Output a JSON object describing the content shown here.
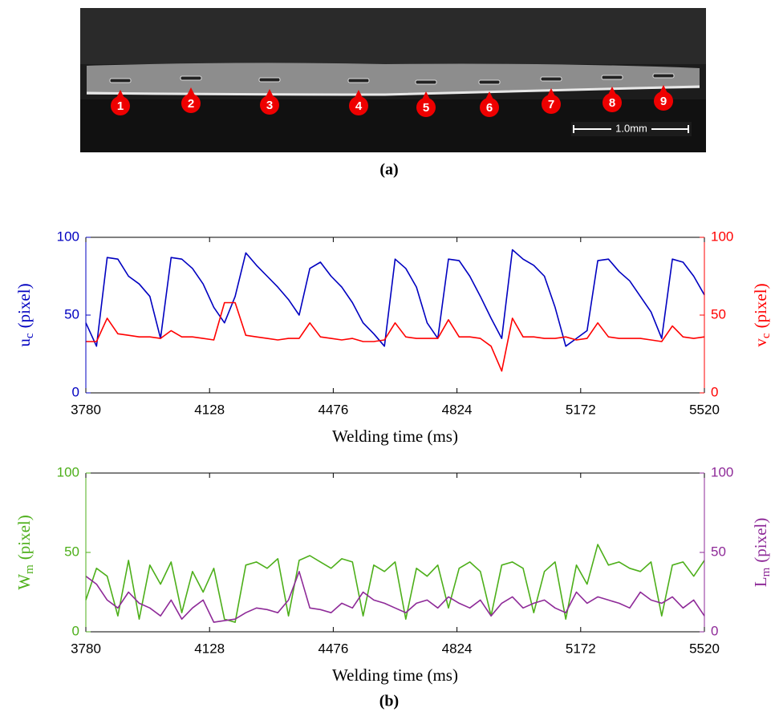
{
  "panel_a": {
    "markers": [
      "1",
      "2",
      "3",
      "4",
      "5",
      "6",
      "7",
      "8",
      "9"
    ],
    "scale_bar": "1.0mm",
    "caption": "(a)"
  },
  "chart_data": [
    {
      "type": "line",
      "x": [
        3780,
        3810,
        3840,
        3870,
        3900,
        3930,
        3960,
        3990,
        4020,
        4050,
        4080,
        4110,
        4140,
        4170,
        4200,
        4230,
        4260,
        4290,
        4320,
        4350,
        4380,
        4410,
        4440,
        4470,
        4500,
        4530,
        4560,
        4590,
        4620,
        4650,
        4680,
        4710,
        4740,
        4770,
        4800,
        4830,
        4860,
        4890,
        4920,
        4950,
        4980,
        5010,
        5040,
        5070,
        5100,
        5130,
        5160,
        5190,
        5220,
        5250,
        5280,
        5310,
        5340,
        5370,
        5400,
        5430,
        5460,
        5490,
        5520
      ],
      "xlim": [
        3780,
        5520
      ],
      "xticks": [
        3780,
        4128,
        4476,
        4824,
        5172,
        5520
      ],
      "ylim": [
        0,
        100
      ],
      "yticks": [
        0,
        50,
        100
      ],
      "y2lim": [
        0,
        100
      ],
      "y2ticks": [
        0,
        50,
        100
      ],
      "xlabel": "Welding time (ms)",
      "ylabel": {
        "main": "u",
        "sub": "c",
        "unit": "(pixel)"
      },
      "y2label": {
        "main": "v",
        "sub": "c",
        "unit": "(pixel)"
      },
      "grid": false,
      "series": [
        {
          "color": "#0000c0",
          "values": [
            45,
            30,
            87,
            86,
            75,
            70,
            62,
            35,
            87,
            86,
            80,
            70,
            55,
            45,
            62,
            90,
            82,
            75,
            68,
            60,
            50,
            80,
            84,
            75,
            68,
            58,
            45,
            38,
            30,
            86,
            80,
            68,
            45,
            35,
            86,
            85,
            75,
            62,
            48,
            35,
            92,
            86,
            82,
            75,
            55,
            30,
            35,
            40,
            85,
            86,
            78,
            72,
            62,
            52,
            35,
            86,
            84,
            75,
            63
          ]
        },
        {
          "color": "#ff0000",
          "axis": "y2",
          "values": [
            33,
            33,
            48,
            38,
            37,
            36,
            36,
            35,
            40,
            36,
            36,
            35,
            34,
            58,
            58,
            37,
            36,
            35,
            34,
            35,
            35,
            45,
            36,
            35,
            34,
            35,
            33,
            33,
            34,
            45,
            36,
            35,
            35,
            35,
            47,
            36,
            36,
            35,
            30,
            14,
            48,
            36,
            36,
            35,
            35,
            36,
            34,
            35,
            45,
            36,
            35,
            35,
            35,
            34,
            33,
            43,
            36,
            35,
            36
          ]
        }
      ]
    },
    {
      "type": "line",
      "x": [
        3780,
        3810,
        3840,
        3870,
        3900,
        3930,
        3960,
        3990,
        4020,
        4050,
        4080,
        4110,
        4140,
        4170,
        4200,
        4230,
        4260,
        4290,
        4320,
        4350,
        4380,
        4410,
        4440,
        4470,
        4500,
        4530,
        4560,
        4590,
        4620,
        4650,
        4680,
        4710,
        4740,
        4770,
        4800,
        4830,
        4860,
        4890,
        4920,
        4950,
        4980,
        5010,
        5040,
        5070,
        5100,
        5130,
        5160,
        5190,
        5220,
        5250,
        5280,
        5310,
        5340,
        5370,
        5400,
        5430,
        5460,
        5490,
        5520
      ],
      "xlim": [
        3780,
        5520
      ],
      "xticks": [
        3780,
        4128,
        4476,
        4824,
        5172,
        5520
      ],
      "ylim": [
        0,
        100
      ],
      "yticks": [
        0,
        50,
        100
      ],
      "y2lim": [
        0,
        100
      ],
      "y2ticks": [
        0,
        50,
        100
      ],
      "xlabel": "Welding time (ms)",
      "ylabel": {
        "main": "W",
        "sub": "m",
        "unit": "(pixel)"
      },
      "y2label": {
        "main": "L",
        "sub": "m",
        "unit": "(pixel)"
      },
      "grid": false,
      "series": [
        {
          "color": "#4daf1a",
          "values": [
            20,
            40,
            35,
            10,
            45,
            8,
            42,
            30,
            44,
            12,
            38,
            25,
            40,
            8,
            6,
            42,
            44,
            40,
            46,
            10,
            45,
            48,
            44,
            40,
            46,
            44,
            10,
            42,
            38,
            44,
            8,
            40,
            35,
            42,
            15,
            40,
            44,
            38,
            10,
            42,
            44,
            40,
            12,
            38,
            44,
            8,
            42,
            30,
            55,
            42,
            44,
            40,
            38,
            44,
            10,
            42,
            44,
            35,
            45
          ]
        },
        {
          "color": "#8e2a98",
          "axis": "y2",
          "values": [
            35,
            30,
            20,
            15,
            25,
            18,
            15,
            10,
            20,
            8,
            15,
            20,
            6,
            7,
            8,
            12,
            15,
            14,
            12,
            20,
            38,
            15,
            14,
            12,
            18,
            15,
            25,
            20,
            18,
            15,
            12,
            18,
            20,
            15,
            22,
            18,
            15,
            20,
            10,
            18,
            22,
            15,
            18,
            20,
            15,
            12,
            25,
            18,
            22,
            20,
            18,
            15,
            25,
            20,
            18,
            22,
            15,
            20,
            10
          ]
        }
      ]
    }
  ],
  "caption": "(b)"
}
